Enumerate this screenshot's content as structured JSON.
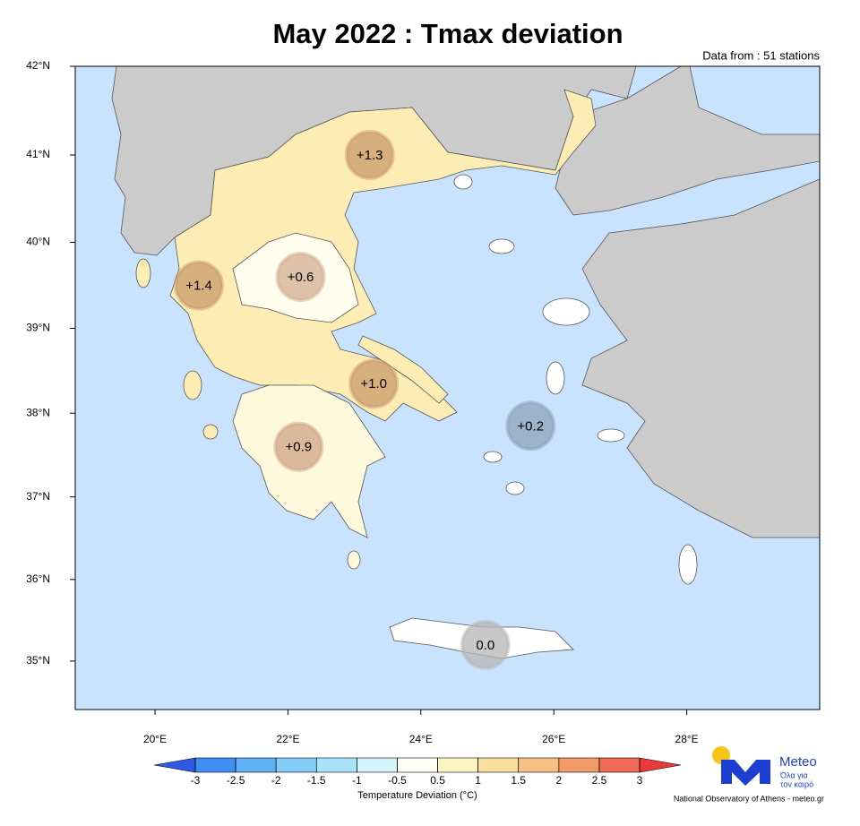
{
  "map": {
    "title": "May 2022 : Tmax deviation",
    "subtitle": "Data from : 51 stations",
    "xlim": [
      18.8,
      30.0
    ],
    "ylim": [
      34.4,
      42.0
    ],
    "xticks": [
      {
        "value": 20,
        "label": "20°E"
      },
      {
        "value": 22,
        "label": "22°E"
      },
      {
        "value": 24,
        "label": "24°E"
      },
      {
        "value": 26,
        "label": "26°E"
      },
      {
        "value": 28,
        "label": "28°E"
      }
    ],
    "yticks": [
      {
        "value": 35,
        "label": "35°N"
      },
      {
        "value": 36,
        "label": "36°N"
      },
      {
        "value": 37,
        "label": "37°N"
      },
      {
        "value": 38,
        "label": "38°N"
      },
      {
        "value": 39,
        "label": "39°N"
      },
      {
        "value": 40,
        "label": "40°N"
      },
      {
        "value": 41,
        "label": "41°N"
      },
      {
        "value": 42,
        "label": "42°N"
      }
    ],
    "stations": {
      "lon": [
        23.23,
        20.66,
        22.19,
        23.29,
        22.16,
        25.65,
        24.97
      ],
      "lat": [
        41.0,
        39.5,
        39.6,
        38.35,
        37.6,
        37.85,
        35.2
      ],
      "values": [
        1.3,
        1.4,
        0.6,
        1.0,
        0.9,
        0.2,
        0.0
      ],
      "value_labels": [
        "+1.3",
        "+1.4",
        "+0.6",
        "+1.0",
        "+0.9",
        "+0.2",
        "0.0"
      ],
      "colors": [
        "#c99a6b",
        "#c99a6b",
        "#d2ad92",
        "#c99a6b",
        "#cfa483",
        "#8ea2b9",
        "#b5b5b5"
      ]
    },
    "colorbar": {
      "label": "Temperature Deviation (°C)",
      "levels": [
        -3,
        -2.5,
        -2,
        -1.5,
        -1,
        -0.5,
        0.5,
        1,
        1.5,
        2,
        2.5,
        3
      ],
      "colors": [
        "#3f8ff2",
        "#5fb1f5",
        "#84cdf8",
        "#a9e3fb",
        "#d2f4fc",
        "#fffff4",
        "#fdf4c4",
        "#fbdf9e",
        "#f7bf82",
        "#f39a69",
        "#ee6c55"
      ],
      "extend_colors": [
        "#2f5ae6",
        "#e83a3a"
      ]
    },
    "logo": {
      "name": "Meteo",
      "tagline_1": "Όλα για",
      "tagline_2": "τον καιρό",
      "credit": "National Observatory of Athens - meteo.gr"
    }
  }
}
